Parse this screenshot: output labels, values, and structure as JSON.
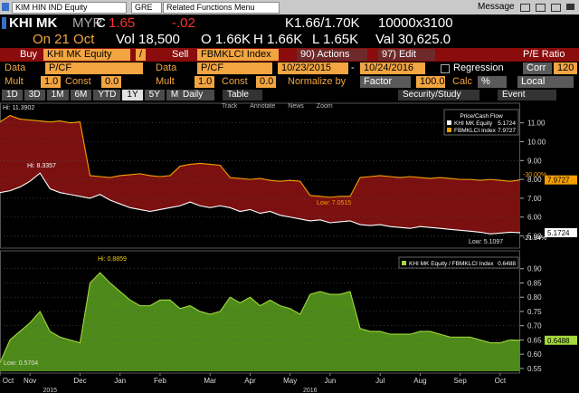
{
  "top_bar": {
    "security": "KIM HIN IND Equity",
    "source": "GRE",
    "menu": "Related Functions Menu",
    "message": "Message"
  },
  "quote": {
    "ticker": "KHI MK",
    "currency": "MYR",
    "condition": "C",
    "last": "1.65",
    "change": "-.02",
    "bid_ask": "K1.66/1.70K",
    "size": "10000x3100",
    "date": "On 21 Oct",
    "volume": "Vol 18,500",
    "open": "O 1.66K",
    "high": "H 1.66K",
    "low": "L 1.65K",
    "turnover": "Val 30,625.0"
  },
  "command_bar": {
    "buy": "Buy",
    "security1": "KHI MK Equity",
    "separator": "/",
    "sell": "Sell",
    "security2": "FBMKLCI Index",
    "actions": "90) Actions",
    "edit": "97) Edit",
    "function": "P/E Ratio"
  },
  "settings": {
    "data_label_1": "Data",
    "data_1": "P/CF",
    "data_label_2": "Data",
    "data_2": "P/CF",
    "start": "10/23/2015",
    "dash": "-",
    "end": "10/24/2016",
    "regression": "Regression",
    "corr": "Corr",
    "corr_window": "120",
    "mult_label_1": "Mult",
    "mult_1": "1.0",
    "const_label_1": "Const",
    "const_1": "0.0",
    "mult_label_2": "Mult",
    "mult_2": "1.0",
    "const_label_2": "Const",
    "const_2": "0.0",
    "normalize": "Normalize by",
    "factor": "Factor",
    "factor_value": "100.0",
    "calc": "Calc",
    "calc_value": "%",
    "currency": "Local"
  },
  "toolbar": {
    "periods": [
      "1D",
      "3D",
      "1M",
      "6M",
      "YTD",
      "1Y",
      "5Y",
      "Max"
    ],
    "selected": "1Y",
    "frequency": "Daily",
    "table": "Table",
    "study": "Security/Study",
    "event": "Event"
  },
  "chart_tools": [
    "Track",
    "Annotate",
    "News",
    "Zoom"
  ],
  "chart_data": [
    {
      "type": "line",
      "title": "Price/Cash Flow",
      "grid": true,
      "fill_between": "#7a1010",
      "ylim": [
        4.45,
        11.85
      ],
      "yticks": [
        {
          "value": 5,
          "label": "5.00"
        },
        {
          "value": 6,
          "label": "6.00"
        },
        {
          "value": 7,
          "label": "7.00"
        },
        {
          "value": 8,
          "label": "8.00"
        },
        {
          "value": 9,
          "label": "9.00"
        },
        {
          "value": 10,
          "label": "10.00"
        },
        {
          "value": 11,
          "label": "11.00"
        }
      ],
      "series": [
        {
          "name": "KHI MK Equity",
          "color": "#ffffff",
          "values": [
            7.3,
            7.4,
            7.6,
            7.9,
            8.3357,
            7.5,
            7.3,
            7.2,
            7.1,
            7.0,
            7.2,
            6.9,
            6.7,
            6.5,
            6.4,
            6.3,
            6.4,
            6.5,
            6.6,
            6.8,
            6.6,
            6.5,
            6.6,
            6.5,
            6.3,
            6.4,
            6.2,
            6.3,
            6.1,
            6.0,
            5.9,
            5.8,
            5.85,
            5.7,
            5.75,
            5.8,
            5.6,
            5.55,
            5.6,
            5.5,
            5.45,
            5.4,
            5.5,
            5.45,
            5.4,
            5.35,
            5.3,
            5.25,
            5.2,
            5.1097,
            5.15,
            5.2,
            5.1724
          ]
        },
        {
          "name": "FBMKLCI Index",
          "color": "#f5a000",
          "values": [
            11.05,
            11.3902,
            11.2,
            11.15,
            11.1,
            11.05,
            11.1,
            11.0,
            11.05,
            8.2,
            8.15,
            8.1,
            8.2,
            8.25,
            8.3,
            8.2,
            8.15,
            8.2,
            8.7,
            8.8,
            8.85,
            8.8,
            8.75,
            8.1,
            8.05,
            8.0,
            8.05,
            7.95,
            7.9,
            7.95,
            7.9,
            7.15,
            7.1,
            7.0515,
            7.1,
            7.1,
            8.1,
            8.15,
            8.2,
            8.15,
            8.1,
            8.15,
            8.1,
            8.05,
            8.1,
            8.05,
            8.0,
            8.0,
            7.95,
            8.0,
            7.95,
            7.9,
            7.9727
          ]
        }
      ],
      "annotations": [
        "Hi: 11.3902",
        "Hi: 8.3357",
        "Low: 7.0515",
        "Low: 5.1097",
        "-30.00%",
        "-21.34%"
      ]
    },
    {
      "type": "area",
      "grid": true,
      "fill_color": "#4d8a1a",
      "ylim": [
        0.54,
        0.95
      ],
      "yticks": [
        0.55,
        {
          "value": 0.6,
          "label": "0.60"
        },
        0.65,
        {
          "value": 0.7,
          "label": "0.70"
        },
        0.75,
        {
          "value": 0.8,
          "label": "0.80"
        },
        0.85,
        {
          "value": 0.9,
          "label": "0.90"
        }
      ],
      "categories": [
        "Oct",
        null,
        null,
        "Nov",
        null,
        null,
        null,
        null,
        "Dec",
        null,
        null,
        null,
        "Jan",
        null,
        null,
        null,
        "Feb",
        null,
        null,
        null,
        null,
        "Mar",
        null,
        null,
        null,
        "Apr",
        null,
        null,
        null,
        "May",
        null,
        null,
        null,
        "Jun",
        null,
        null,
        null,
        null,
        "Jul",
        null,
        null,
        null,
        "Aug",
        null,
        null,
        null,
        "Sep",
        null,
        null,
        null,
        "Oct",
        null,
        null
      ],
      "year_labels": [
        null,
        null,
        null,
        null,
        null,
        "2015",
        null,
        null,
        null,
        null,
        null,
        null,
        null,
        null,
        null,
        null,
        null,
        null,
        null,
        null,
        null,
        null,
        null,
        null,
        null,
        null,
        null,
        null,
        null,
        null,
        null,
        "2016",
        null,
        null,
        null,
        null,
        null,
        null,
        null,
        null,
        null,
        null,
        null,
        null,
        null,
        null,
        null,
        null,
        null,
        null,
        null,
        null,
        null
      ],
      "series": [
        {
          "name": "KHI MK Equity / FBMKLCI Index",
          "color": "#a4d93c",
          "values": [
            0.5704,
            0.65,
            0.68,
            0.71,
            0.75,
            0.68,
            0.66,
            0.65,
            0.64,
            0.85,
            0.8859,
            0.85,
            0.82,
            0.79,
            0.77,
            0.77,
            0.79,
            0.79,
            0.76,
            0.77,
            0.75,
            0.74,
            0.75,
            0.8,
            0.78,
            0.8,
            0.77,
            0.79,
            0.77,
            0.76,
            0.74,
            0.81,
            0.82,
            0.81,
            0.81,
            0.82,
            0.69,
            0.68,
            0.68,
            0.67,
            0.67,
            0.67,
            0.68,
            0.68,
            0.67,
            0.66,
            0.66,
            0.66,
            0.65,
            0.64,
            0.64,
            0.65,
            0.6488
          ]
        }
      ],
      "annotations": [
        "Hi: 0.8859",
        "Low: 0.5704"
      ]
    }
  ]
}
